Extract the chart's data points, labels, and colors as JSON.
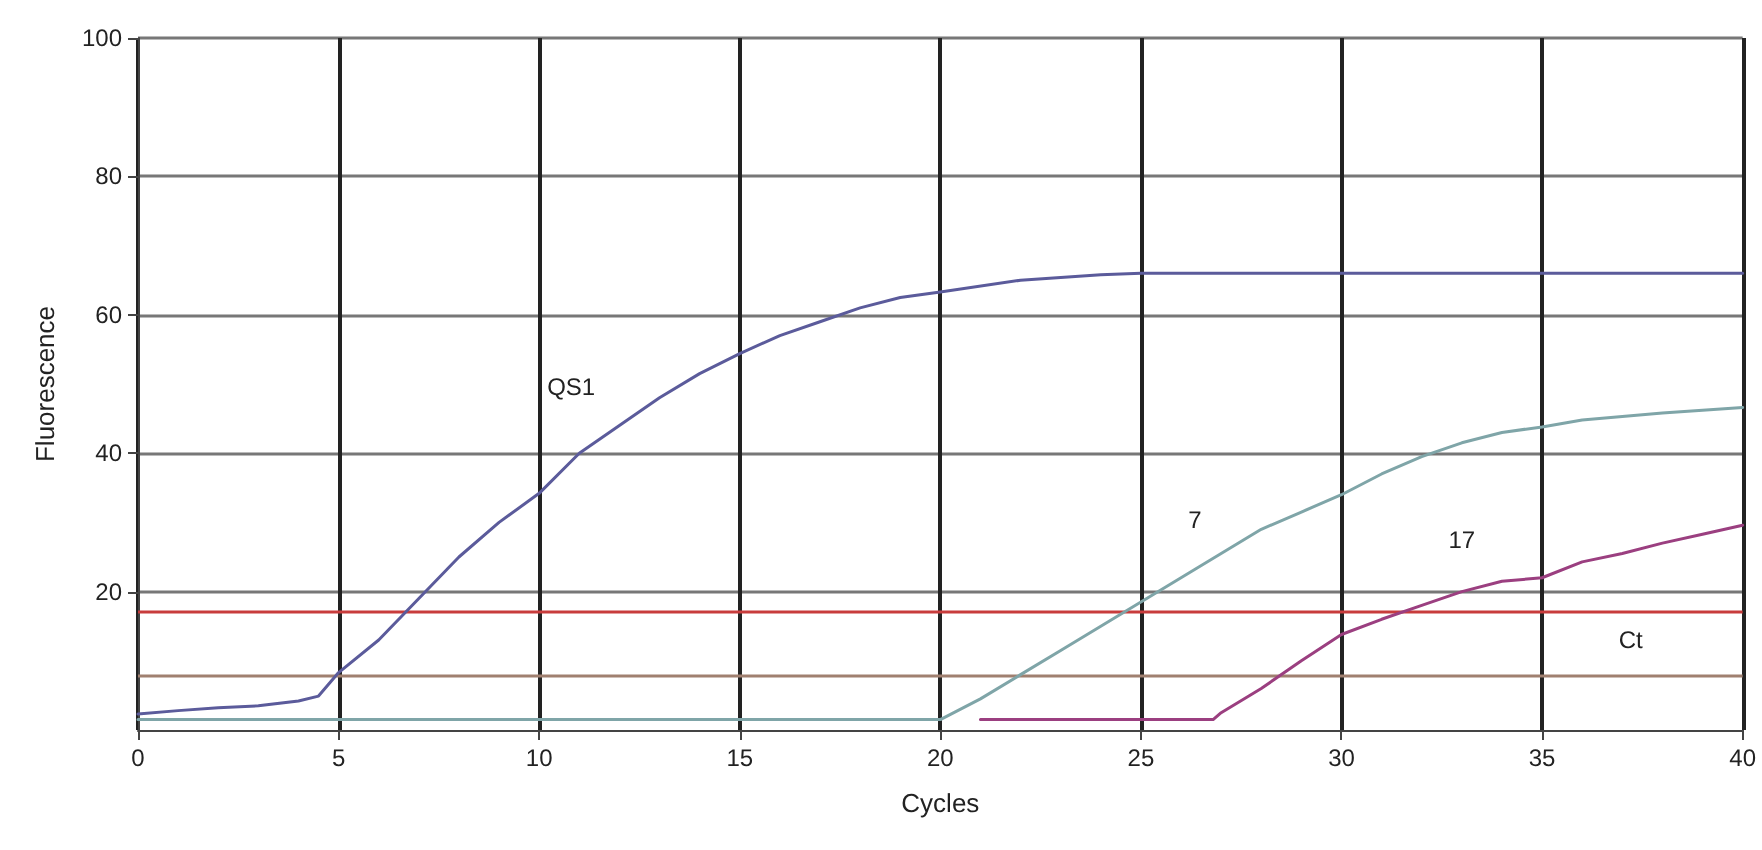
{
  "chart_data": {
    "type": "line",
    "xlabel": "Cycles",
    "ylabel": "Fluorescence",
    "xlim": [
      0,
      40
    ],
    "ylim": [
      0,
      100
    ],
    "xticks": [
      0,
      5,
      10,
      15,
      20,
      25,
      30,
      35,
      40
    ],
    "yticks": [
      20,
      40,
      60,
      80,
      100
    ],
    "grid": true,
    "legend": false,
    "marker": "none",
    "line_style": "solid",
    "series": [
      {
        "name": "QS1",
        "color": "#5b5b9b",
        "x": [
          0,
          1,
          2,
          3,
          4,
          4.5,
          5,
          6,
          7,
          8,
          9,
          10,
          11,
          12,
          13,
          14,
          15,
          16,
          17,
          18,
          19,
          20,
          22,
          24,
          25,
          30,
          35,
          40
        ],
        "values": [
          2.3,
          2.8,
          3.2,
          3.5,
          4.2,
          4.9,
          8.3,
          13,
          19,
          25,
          30,
          34.2,
          40,
          44,
          48,
          51.5,
          54.4,
          57,
          59,
          61,
          62.5,
          63.3,
          65,
          65.8,
          66,
          66,
          66,
          66
        ]
      },
      {
        "name": "7",
        "color": "#7fa5a8",
        "x": [
          0,
          5,
          10,
          15,
          20,
          21,
          22,
          23,
          24,
          25,
          26,
          27,
          28,
          29,
          30,
          31,
          32,
          33,
          34,
          35,
          36,
          38,
          40
        ],
        "values": [
          1.5,
          1.5,
          1.5,
          1.5,
          1.5,
          4.5,
          8,
          11.5,
          15,
          18.5,
          22,
          25.5,
          29,
          31.5,
          34,
          37,
          39.5,
          41.5,
          43,
          43.8,
          44.8,
          45.8,
          46.6
        ]
      },
      {
        "name": "17",
        "color": "#9b3f80",
        "x": [
          21,
          25,
          26.8,
          27,
          28,
          29,
          30,
          31,
          32,
          33,
          34,
          35,
          36,
          37,
          38,
          39,
          40
        ],
        "values": [
          1.5,
          1.5,
          1.5,
          2.5,
          6,
          10,
          13.8,
          16,
          18,
          20,
          21.5,
          22,
          24.3,
          25.5,
          27,
          28.3,
          29.6
        ]
      }
    ],
    "ref_lines": [
      {
        "axis": "y",
        "value": 17,
        "label": "Ct",
        "color": "#c83c3c"
      },
      {
        "axis": "y",
        "value": 8,
        "label": null,
        "color": "#a08070"
      }
    ]
  }
}
